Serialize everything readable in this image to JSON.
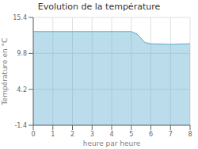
{
  "chart_data": {
    "type": "area",
    "title": "Evolution de la température",
    "xlabel": "heure par heure",
    "ylabel": "Température en °C",
    "x": [
      0,
      1,
      2,
      3,
      4,
      5,
      5.3,
      5.7,
      6,
      7,
      8
    ],
    "values": [
      13.2,
      13.2,
      13.2,
      13.2,
      13.2,
      13.2,
      12.8,
      11.5,
      11.3,
      11.2,
      11.3
    ],
    "xlim": [
      0,
      8
    ],
    "ylim": [
      -1.4,
      15.4
    ],
    "xticks": [
      0,
      1,
      2,
      3,
      4,
      5,
      6,
      7,
      8
    ],
    "yticks": [
      -1.4,
      4.2,
      9.8,
      15.4
    ],
    "color": "#55aacc",
    "grid": true
  }
}
